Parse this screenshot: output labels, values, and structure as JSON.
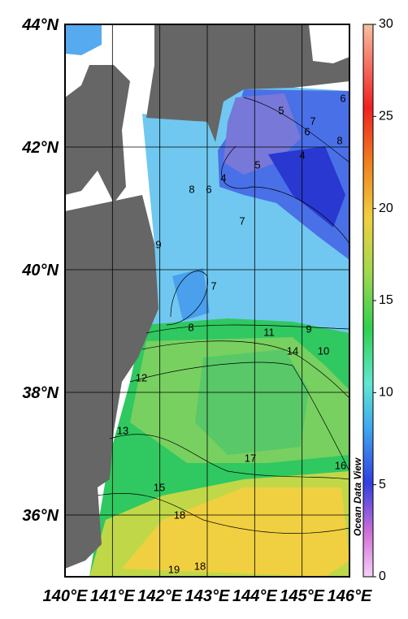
{
  "map": {
    "lat_labels": [
      "44°N",
      "42°N",
      "40°N",
      "38°N",
      "36°N"
    ],
    "lon_labels": [
      "140°E",
      "141°E",
      "142°E",
      "143°E",
      "144°E",
      "145°E",
      "146°E"
    ],
    "contour_labels": [
      "5",
      "7",
      "6",
      "8",
      "6",
      "4",
      "5",
      "4",
      "6",
      "8",
      "7",
      "9",
      "7",
      "8",
      "11",
      "9",
      "14",
      "10",
      "12",
      "13",
      "17",
      "16",
      "15",
      "18",
      "18",
      "19"
    ],
    "colorbar": {
      "lim": [
        0,
        30
      ],
      "ticks": [
        0,
        5,
        10,
        15,
        20,
        25,
        30
      ]
    },
    "watermark": "Ocean Data View"
  }
}
